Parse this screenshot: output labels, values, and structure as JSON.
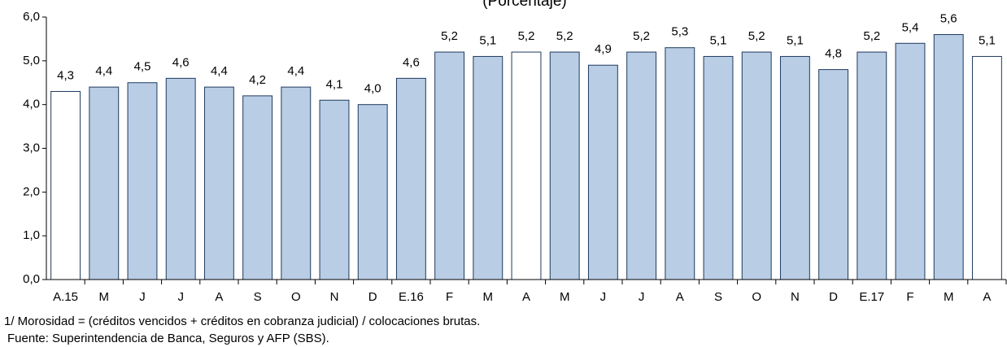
{
  "chart_data": {
    "type": "bar",
    "subtitle": "(Porcentaje)",
    "categories": [
      "A.15",
      "M",
      "J",
      "J",
      "A",
      "S",
      "O",
      "N",
      "D",
      "E.16",
      "F",
      "M",
      "A",
      "M",
      "J",
      "J",
      "A",
      "S",
      "O",
      "N",
      "D",
      "E.17",
      "F",
      "M",
      "A"
    ],
    "values": [
      4.3,
      4.4,
      4.5,
      4.6,
      4.4,
      4.2,
      4.4,
      4.1,
      4.0,
      4.6,
      5.2,
      5.1,
      5.2,
      5.2,
      4.9,
      5.2,
      5.3,
      5.1,
      5.2,
      5.1,
      4.8,
      5.2,
      5.4,
      5.6,
      5.1
    ],
    "value_labels": [
      "4,3",
      "4,4",
      "4,5",
      "4,6",
      "4,4",
      "4,2",
      "4,4",
      "4,1",
      "4,0",
      "4,6",
      "5,2",
      "5,1",
      "5,2",
      "5,2",
      "4,9",
      "5,2",
      "5,3",
      "5,1",
      "5,2",
      "5,1",
      "4,8",
      "5,2",
      "5,4",
      "5,6",
      "5,1"
    ],
    "colors": [
      "#ffffff",
      "#b9cde5",
      "#b9cde5",
      "#b9cde5",
      "#b9cde5",
      "#b9cde5",
      "#b9cde5",
      "#b9cde5",
      "#b9cde5",
      "#b9cde5",
      "#b9cde5",
      "#b9cde5",
      "#ffffff",
      "#b9cde5",
      "#b9cde5",
      "#b9cde5",
      "#b9cde5",
      "#b9cde5",
      "#b9cde5",
      "#b9cde5",
      "#b9cde5",
      "#b9cde5",
      "#b9cde5",
      "#b9cde5",
      "#ffffff"
    ],
    "edge_color": "#1f3a5f",
    "ylim": [
      0,
      6
    ],
    "yticks": [
      {
        "value": 0,
        "label": "0,0"
      },
      {
        "value": 1,
        "label": "1,0"
      },
      {
        "value": 2,
        "label": "2,0"
      },
      {
        "value": 3,
        "label": "3,0"
      },
      {
        "value": 4,
        "label": "4,0"
      },
      {
        "value": 5,
        "label": "5,0"
      },
      {
        "value": 6,
        "label": "6,0"
      }
    ],
    "grid": false,
    "notes": [
      "1/ Morosidad = (créditos vencidos + créditos en cobranza judicial) / colocaciones brutas.",
      "Fuente: Superintendencia de Banca, Seguros y AFP (SBS)."
    ]
  }
}
